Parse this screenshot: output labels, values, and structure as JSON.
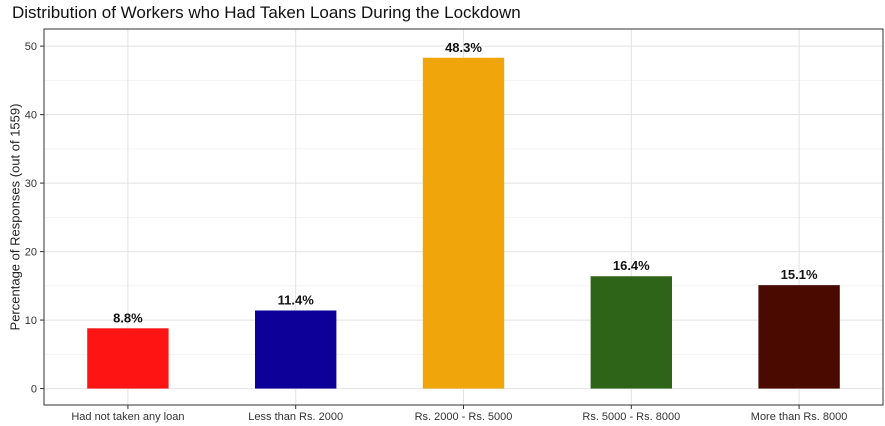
{
  "chart_data": {
    "type": "bar",
    "title": "Distribution of Workers who Had Taken Loans During the Lockdown",
    "xlabel": "",
    "ylabel": "Percentage of Responses (out of 1559)",
    "categories": [
      "Had not taken any loan",
      "Less than Rs. 2000",
      "Rs. 2000 - Rs. 5000",
      "Rs. 5000 - Rs. 8000",
      "More than Rs. 8000"
    ],
    "values": [
      8.8,
      11.4,
      48.3,
      16.4,
      15.1
    ],
    "data_labels": [
      "8.8%",
      "11.4%",
      "48.3%",
      "16.4%",
      "15.1%"
    ],
    "bar_colors": [
      "#ff1414",
      "#0c0098",
      "#f0a50a",
      "#2e6417",
      "#4a0a00"
    ],
    "ylim": [
      -2.4,
      52.5
    ],
    "yticks": [
      0,
      10,
      20,
      30,
      40,
      50
    ],
    "ytick_labels": [
      "0",
      "10",
      "20",
      "30",
      "40",
      "50"
    ],
    "grid": true,
    "legend": "none"
  }
}
